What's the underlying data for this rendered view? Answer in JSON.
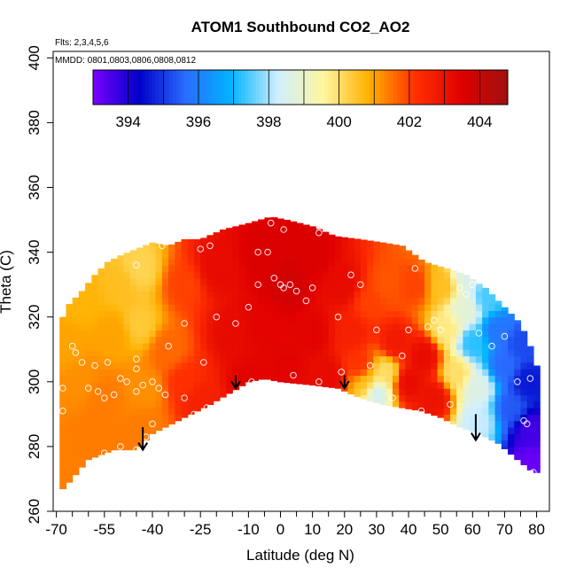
{
  "chart_data": {
    "type": "heatmap",
    "title": "ATOM1 Southbound CO2_AO2",
    "subtitle_flights": "Flts: 2,3,4,5,6",
    "subtitle_dates": "MMDD: 0801,0803,0806,0808,0812",
    "xlabel": "Latitude (deg N)",
    "ylabel": "Theta (C)",
    "xlim": [
      -71,
      84
    ],
    "ylim": [
      260,
      402
    ],
    "x_ticks": [
      -70,
      -55,
      -40,
      -25,
      -10,
      0,
      10,
      20,
      30,
      40,
      50,
      60,
      70,
      80
    ],
    "x_minor_ticks": [
      -65,
      -60,
      -50,
      -45,
      -35,
      -30,
      -20,
      -15,
      -5,
      5,
      15,
      25,
      35,
      45,
      55,
      65,
      75
    ],
    "y_ticks": [
      260,
      280,
      300,
      320,
      340,
      360,
      380,
      400
    ],
    "colorbar": {
      "min": 393,
      "max": 404.8,
      "ticks": [
        394,
        396,
        398,
        400,
        402,
        404
      ],
      "colors": [
        "#7a00ff",
        "#0000c8",
        "#2a6cff",
        "#00b4ff",
        "#cfeeff",
        "#fff6a0",
        "#ffb000",
        "#ff3000",
        "#e00000",
        "#a01010"
      ]
    },
    "top_boundary": [
      [
        -69,
        318
      ],
      [
        -66,
        324
      ],
      [
        -62,
        328
      ],
      [
        -58,
        333
      ],
      [
        -54,
        337
      ],
      [
        -50,
        339
      ],
      [
        -45,
        341
      ],
      [
        -40,
        343
      ],
      [
        -35,
        342
      ],
      [
        -30,
        344
      ],
      [
        -25,
        344
      ],
      [
        -18,
        347
      ],
      [
        -10,
        349
      ],
      [
        -3,
        351
      ],
      [
        2,
        350
      ],
      [
        10,
        348
      ],
      [
        17,
        345
      ],
      [
        25,
        344
      ],
      [
        32,
        343
      ],
      [
        38,
        342
      ],
      [
        45,
        337
      ],
      [
        52,
        335
      ],
      [
        58,
        333
      ],
      [
        64,
        329
      ],
      [
        70,
        323
      ],
      [
        75,
        318
      ],
      [
        78,
        311
      ],
      [
        79,
        305
      ]
    ],
    "bottom_boundary": [
      [
        -69,
        266
      ],
      [
        -66,
        269
      ],
      [
        -60,
        276
      ],
      [
        -52,
        279
      ],
      [
        -45,
        279
      ],
      [
        -40,
        284
      ],
      [
        -32,
        288
      ],
      [
        -22,
        293
      ],
      [
        -15,
        297
      ],
      [
        -10,
        300
      ],
      [
        -5,
        301
      ],
      [
        0,
        300
      ],
      [
        10,
        299
      ],
      [
        18,
        298
      ],
      [
        25,
        295
      ],
      [
        32,
        293
      ],
      [
        38,
        292
      ],
      [
        44,
        291
      ],
      [
        50,
        289
      ],
      [
        56,
        286
      ],
      [
        62,
        284
      ],
      [
        68,
        281
      ],
      [
        74,
        276
      ],
      [
        79,
        272
      ]
    ],
    "anchors": [
      [
        -67,
        312,
        401.0
      ],
      [
        -62,
        300,
        401.2
      ],
      [
        -58,
        285,
        401.4
      ],
      [
        -52,
        315,
        401.0
      ],
      [
        -50,
        330,
        400.6
      ],
      [
        -44,
        335,
        400.2
      ],
      [
        -44,
        318,
        400.4
      ],
      [
        -42,
        298,
        401.2
      ],
      [
        -42,
        285,
        401.4
      ],
      [
        -35,
        310,
        401.6
      ],
      [
        -30,
        330,
        402.0
      ],
      [
        -30,
        300,
        402.2
      ],
      [
        -25,
        295,
        402.6
      ],
      [
        -20,
        335,
        403.2
      ],
      [
        -15,
        315,
        403.2
      ],
      [
        -10,
        300,
        403.4
      ],
      [
        -5,
        340,
        403.6
      ],
      [
        -5,
        318,
        403.4
      ],
      [
        2,
        330,
        403.8
      ],
      [
        2,
        305,
        403.4
      ],
      [
        10,
        340,
        403.6
      ],
      [
        10,
        315,
        403.4
      ],
      [
        15,
        302,
        403.2
      ],
      [
        20,
        330,
        403.2
      ],
      [
        22,
        315,
        402.6
      ],
      [
        25,
        305,
        402.2
      ],
      [
        27,
        300,
        400.6
      ],
      [
        30,
        297,
        398.4
      ],
      [
        33,
        303,
        400.0
      ],
      [
        28,
        325,
        402.0
      ],
      [
        33,
        330,
        401.8
      ],
      [
        36,
        312,
        402.8
      ],
      [
        40,
        300,
        403.2
      ],
      [
        42,
        330,
        402.0
      ],
      [
        45,
        308,
        403.2
      ],
      [
        48,
        295,
        403.0
      ],
      [
        50,
        330,
        400.6
      ],
      [
        52,
        316,
        399.8
      ],
      [
        55,
        303,
        400.0
      ],
      [
        58,
        322,
        398.8
      ],
      [
        60,
        312,
        397.2
      ],
      [
        62,
        298,
        398.6
      ],
      [
        62,
        288,
        398.2
      ],
      [
        65,
        326,
        397.4
      ],
      [
        68,
        316,
        395.8
      ],
      [
        70,
        305,
        395.6
      ],
      [
        72,
        292,
        395.4
      ],
      [
        75,
        312,
        395.2
      ],
      [
        77,
        300,
        394.6
      ],
      [
        78,
        285,
        393.6
      ],
      [
        78,
        275,
        393.2
      ],
      [
        58,
        334,
        398.6
      ],
      [
        -62,
        325,
        400.8
      ],
      [
        -56,
        296,
        401.4
      ]
    ],
    "sample_points": [
      [
        -65,
        311
      ],
      [
        -64,
        309
      ],
      [
        -62,
        306
      ],
      [
        -58,
        305
      ],
      [
        -54,
        306
      ],
      [
        -50,
        301
      ],
      [
        -48,
        300
      ],
      [
        -45,
        297
      ],
      [
        -43,
        299
      ],
      [
        -40,
        300
      ],
      [
        -38,
        298
      ],
      [
        -36,
        296
      ],
      [
        -60,
        298
      ],
      [
        -57,
        297
      ],
      [
        -55,
        295
      ],
      [
        -52,
        296
      ],
      [
        -68,
        291
      ],
      [
        -68,
        298
      ],
      [
        -50,
        280
      ],
      [
        -45,
        279
      ],
      [
        -55,
        278
      ],
      [
        -45,
        307
      ],
      [
        -45,
        304
      ],
      [
        -35,
        311
      ],
      [
        -30,
        318
      ],
      [
        -37,
        342
      ],
      [
        -45,
        336
      ],
      [
        -25,
        341
      ],
      [
        -22,
        342
      ],
      [
        -20,
        320
      ],
      [
        -14,
        318
      ],
      [
        -10,
        323
      ],
      [
        -7,
        330
      ],
      [
        -2,
        332
      ],
      [
        -4,
        340
      ],
      [
        0,
        330
      ],
      [
        1,
        329
      ],
      [
        3,
        330
      ],
      [
        5,
        328
      ],
      [
        8,
        325
      ],
      [
        10,
        329
      ],
      [
        12,
        346
      ],
      [
        18,
        320
      ],
      [
        22,
        333
      ],
      [
        25,
        330
      ],
      [
        28,
        305
      ],
      [
        30,
        316
      ],
      [
        35,
        295
      ],
      [
        38,
        308
      ],
      [
        40,
        316
      ],
      [
        42,
        335
      ],
      [
        44,
        291
      ],
      [
        50,
        316
      ],
      [
        53,
        293
      ],
      [
        56,
        329
      ],
      [
        58,
        327
      ],
      [
        60,
        330
      ],
      [
        62,
        315
      ],
      [
        66,
        311
      ],
      [
        70,
        314
      ],
      [
        74,
        300
      ],
      [
        76,
        288
      ],
      [
        77,
        287
      ],
      [
        -3,
        349
      ],
      [
        1,
        347
      ],
      [
        -7,
        340
      ],
      [
        -24,
        306
      ],
      [
        -23,
        292
      ],
      [
        -27,
        290
      ],
      [
        -30,
        295
      ],
      [
        -40,
        287
      ],
      [
        -42,
        283
      ],
      [
        -14,
        296
      ],
      [
        -9,
        300
      ],
      [
        0,
        298
      ],
      [
        4,
        302
      ],
      [
        12,
        300
      ],
      [
        19,
        303
      ],
      [
        46,
        317
      ],
      [
        48,
        319
      ],
      [
        70,
        327
      ],
      [
        78,
        301
      ],
      [
        79,
        272
      ]
    ],
    "arrows": [
      [
        -43,
        286,
        279
      ],
      [
        -14,
        302,
        298
      ],
      [
        20,
        302,
        298
      ],
      [
        61,
        290,
        282
      ]
    ]
  }
}
